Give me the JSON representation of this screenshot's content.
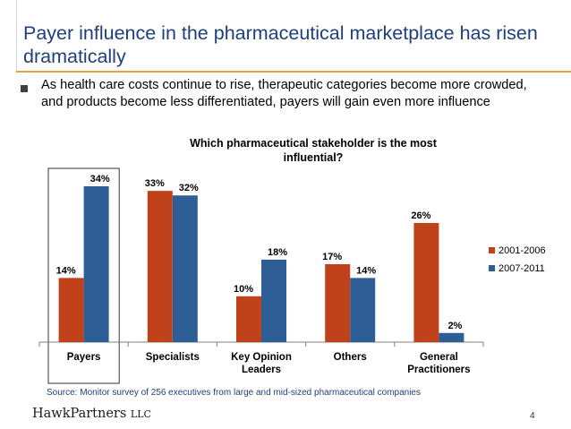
{
  "slide": {
    "title": "Payer influence in the pharmaceutical marketplace has risen dramatically",
    "bullet": "As health care costs continue to rise, therapeutic categories become more crowded, and products become less differentiated, payers will gain even more influence",
    "source": "Source: Monitor survey of 256 executives from large and mid-sized pharmaceutical companies",
    "logo_main": "HawkPartners",
    "logo_suffix": "LLC",
    "page_number": "4"
  },
  "colors": {
    "title": "#1F3F7A",
    "accent_rule": "#E8A33D",
    "series_2001": "#C0421A",
    "series_2007": "#2E5E96"
  },
  "chart_data": {
    "type": "bar",
    "title": "Which pharmaceutical stakeholder is the most influential?",
    "categories": [
      "Payers",
      "Specialists",
      "Key Opinion Leaders",
      "Others",
      "General Practitioners"
    ],
    "category_lines": [
      [
        "Payers"
      ],
      [
        "Specialists"
      ],
      [
        "Key Opinion",
        "Leaders"
      ],
      [
        "Others"
      ],
      [
        "General",
        "Practitioners"
      ]
    ],
    "series": [
      {
        "name": "2001-2006",
        "values": [
          14,
          33,
          10,
          17,
          26
        ],
        "labels": [
          "14%",
          "33%",
          "10%",
          "17%",
          "26%"
        ],
        "color": "#C0421A"
      },
      {
        "name": "2007-2011",
        "values": [
          34,
          32,
          18,
          14,
          2
        ],
        "labels": [
          "34%",
          "32%",
          "18%",
          "14%",
          "2%"
        ],
        "color": "#2E5E96"
      }
    ],
    "ylim": [
      0,
      34
    ],
    "legend_position": "right",
    "highlighted_category": "Payers",
    "grid": false
  }
}
